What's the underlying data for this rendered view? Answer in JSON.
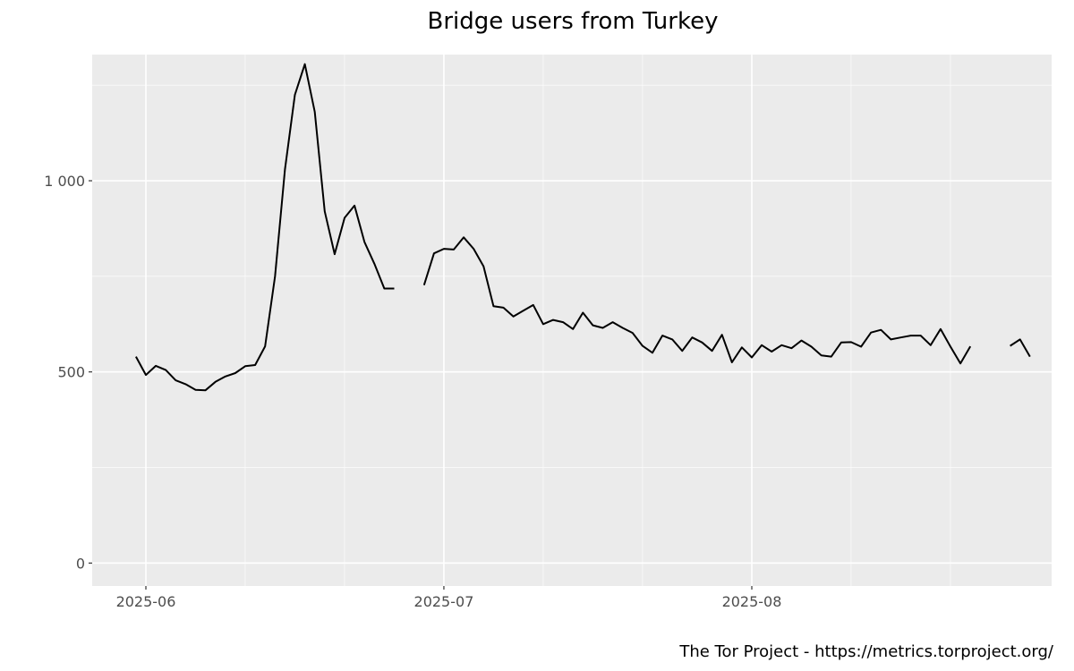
{
  "chart_data": {
    "type": "line",
    "title": "Bridge users from Turkey",
    "caption": "The Tor Project - https://metrics.torproject.org/",
    "xlabel": "",
    "ylabel": "",
    "x_start": "2025-05-31",
    "x_ticks": [
      "2025-06-01",
      "2025-07-01",
      "2025-08-01"
    ],
    "x_tick_labels": [
      "2025-06",
      "2025-07",
      "2025-08"
    ],
    "ylim": [
      -60,
      1330
    ],
    "y_ticks": [
      0,
      500,
      1000
    ],
    "y_tick_labels": [
      "0",
      "500",
      "1 000"
    ],
    "grid": true,
    "series": [
      {
        "color": "#000000",
        "values": [
          540,
          492,
          516,
          505,
          478,
          468,
          453,
          452,
          474,
          488,
          497,
          515,
          518,
          567,
          750,
          1030,
          1225,
          1305,
          1180,
          920,
          808,
          903,
          935,
          840,
          783,
          718,
          718,
          null,
          null,
          727,
          810,
          822,
          820,
          852,
          822,
          776,
          672,
          668,
          645,
          660,
          675,
          625,
          636,
          630,
          612,
          655,
          622,
          615,
          630,
          615,
          602,
          568,
          550,
          595,
          585,
          555,
          590,
          577,
          555,
          597,
          525,
          564,
          538,
          570,
          553,
          570,
          562,
          582,
          566,
          543,
          540,
          577,
          578,
          566,
          603,
          610,
          585,
          590,
          595,
          595,
          570,
          612,
          566,
          522,
          567,
          null,
          null,
          null,
          568,
          585,
          540
        ],
        "dates": [
          "2025-05-31",
          "2025-06-01",
          "2025-06-02",
          "2025-06-03",
          "2025-06-04",
          "2025-06-05",
          "2025-06-06",
          "2025-06-07",
          "2025-06-08",
          "2025-06-09",
          "2025-06-10",
          "2025-06-11",
          "2025-06-12",
          "2025-06-13",
          "2025-06-14",
          "2025-06-15",
          "2025-06-16",
          "2025-06-17",
          "2025-06-18",
          "2025-06-19",
          "2025-06-20",
          "2025-06-21",
          "2025-06-22",
          "2025-06-23",
          "2025-06-24",
          "2025-06-25",
          "2025-06-26",
          "2025-06-27",
          "2025-06-28",
          "2025-06-29",
          "2025-06-30",
          "2025-07-01",
          "2025-07-02",
          "2025-07-03",
          "2025-07-04",
          "2025-07-05",
          "2025-07-06",
          "2025-07-07",
          "2025-07-08",
          "2025-07-09",
          "2025-07-10",
          "2025-07-11",
          "2025-07-12",
          "2025-07-13",
          "2025-07-14",
          "2025-07-15",
          "2025-07-16",
          "2025-07-17",
          "2025-07-18",
          "2025-07-19",
          "2025-07-20",
          "2025-07-21",
          "2025-07-22",
          "2025-07-23",
          "2025-07-24",
          "2025-07-25",
          "2025-07-26",
          "2025-07-27",
          "2025-07-28",
          "2025-07-29",
          "2025-07-30",
          "2025-07-31",
          "2025-08-01",
          "2025-08-02",
          "2025-08-03",
          "2025-08-04",
          "2025-08-05",
          "2025-08-06",
          "2025-08-07",
          "2025-08-08",
          "2025-08-09",
          "2025-08-10",
          "2025-08-11",
          "2025-08-12",
          "2025-08-13",
          "2025-08-14",
          "2025-08-15",
          "2025-08-16",
          "2025-08-17",
          "2025-08-18",
          "2025-08-19",
          "2025-08-20",
          "2025-08-21",
          "2025-08-22",
          "2025-08-23",
          "2025-08-24",
          "2025-08-25",
          "2025-08-26",
          "2025-08-27",
          "2025-08-28",
          "2025-08-29"
        ]
      }
    ]
  }
}
